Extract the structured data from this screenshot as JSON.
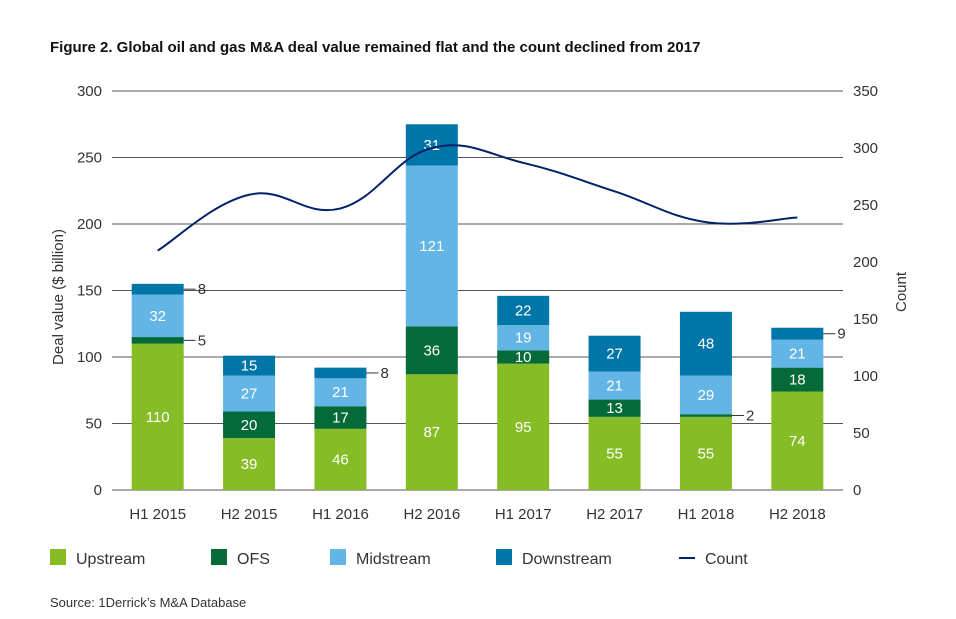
{
  "chart_data": {
    "type": "bar",
    "stacked": true,
    "title": "Figure 2. Global oil and gas M&A deal value remained flat and the count declined from 2017",
    "ylabel": "Deal value ($ billion)",
    "y2label": "Count",
    "ylim": [
      0,
      300
    ],
    "yticks": [
      0,
      50,
      100,
      150,
      200,
      250,
      300
    ],
    "y2lim": [
      0,
      350
    ],
    "y2ticks": [
      0,
      50,
      100,
      150,
      200,
      250,
      300,
      350
    ],
    "grid": true,
    "legend_position": "bottom",
    "categories": [
      "H1 2015",
      "H2 2015",
      "H1 2016",
      "H2 2016",
      "H1 2017",
      "H2 2017",
      "H1 2018",
      "H2 2018"
    ],
    "series": [
      {
        "name": "Upstream",
        "color": "#86bc25",
        "values": [
          110,
          39,
          46,
          87,
          95,
          55,
          55,
          74
        ]
      },
      {
        "name": "OFS",
        "color": "#046a38",
        "values": [
          5,
          20,
          17,
          36,
          10,
          13,
          2,
          18
        ]
      },
      {
        "name": "Midstream",
        "color": "#62b5e5",
        "values": [
          32,
          27,
          21,
          121,
          19,
          21,
          29,
          21
        ]
      },
      {
        "name": "Downstream",
        "color": "#0076a8",
        "values": [
          8,
          15,
          8,
          31,
          22,
          27,
          48,
          9
        ]
      }
    ],
    "line_series": {
      "name": "Count",
      "axis": "right",
      "color": "#012169",
      "values": [
        210,
        259,
        247,
        300,
        287,
        262,
        235,
        239
      ]
    },
    "source": "Source: 1Derrick’s M&A Database"
  }
}
